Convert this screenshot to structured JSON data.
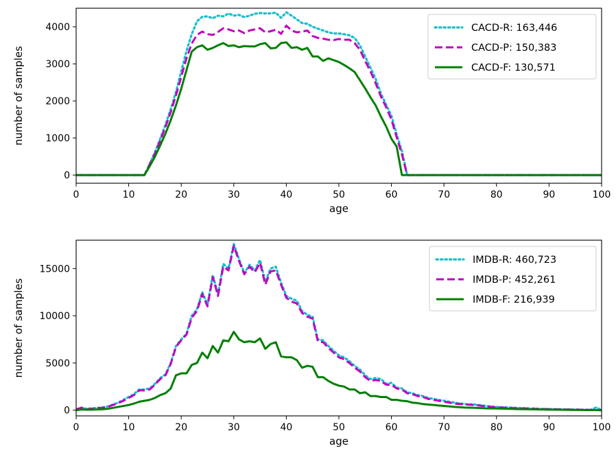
{
  "chart_data": [
    {
      "type": "line",
      "xlabel": "age",
      "ylabel": "number of samples",
      "xlim": [
        0,
        100
      ],
      "ylim": [
        -220,
        4500
      ],
      "xticks": [
        0,
        10,
        20,
        30,
        40,
        50,
        60,
        70,
        80,
        90,
        100
      ],
      "yticks": [
        0,
        1000,
        2000,
        3000,
        4000
      ],
      "grid": false,
      "legend_position": "top-right",
      "series": [
        {
          "name": "CACD-R: 163,446",
          "color": "#17becf",
          "style": "dotted",
          "x": [
            0,
            13,
            14,
            15,
            16,
            17,
            18,
            19,
            20,
            21,
            22,
            23,
            24,
            25,
            26,
            27,
            28,
            29,
            30,
            31,
            32,
            33,
            34,
            35,
            36,
            37,
            38,
            39,
            40,
            41,
            42,
            43,
            44,
            45,
            46,
            47,
            48,
            49,
            50,
            51,
            52,
            53,
            54,
            55,
            56,
            57,
            58,
            59,
            60,
            61,
            62,
            63,
            100
          ],
          "y": [
            0,
            0,
            300,
            620,
            980,
            1360,
            1780,
            2250,
            2800,
            3350,
            3800,
            4150,
            4270,
            4280,
            4230,
            4300,
            4280,
            4360,
            4300,
            4320,
            4260,
            4300,
            4350,
            4370,
            4360,
            4360,
            4380,
            4240,
            4390,
            4300,
            4200,
            4100,
            4080,
            4000,
            3950,
            3900,
            3850,
            3820,
            3820,
            3800,
            3770,
            3700,
            3500,
            3200,
            2900,
            2600,
            2200,
            1900,
            1600,
            1100,
            650,
            0,
            0
          ]
        },
        {
          "name": "CACD-P: 150,383",
          "color": "#bf00bf",
          "style": "dashed",
          "x": [
            0,
            13,
            14,
            15,
            16,
            17,
            18,
            19,
            20,
            21,
            22,
            23,
            24,
            25,
            26,
            27,
            28,
            29,
            30,
            31,
            32,
            33,
            34,
            35,
            36,
            37,
            38,
            39,
            40,
            41,
            42,
            43,
            44,
            45,
            46,
            47,
            48,
            49,
            50,
            51,
            52,
            53,
            54,
            55,
            56,
            57,
            58,
            59,
            60,
            61,
            62,
            63,
            100
          ],
          "y": [
            0,
            0,
            290,
            580,
            930,
            1300,
            1700,
            2150,
            2650,
            3150,
            3550,
            3780,
            3870,
            3800,
            3780,
            3860,
            3960,
            3930,
            3880,
            3900,
            3830,
            3900,
            3930,
            3960,
            3850,
            3880,
            3920,
            3810,
            4030,
            3900,
            3850,
            3870,
            3900,
            3750,
            3700,
            3680,
            3650,
            3640,
            3670,
            3650,
            3650,
            3560,
            3380,
            3080,
            2800,
            2480,
            2120,
            1830,
            1500,
            1020,
            560,
            0,
            0
          ]
        },
        {
          "name": "CACD-F: 130,571",
          "color": "#007f00",
          "style": "solid",
          "x": [
            0,
            13,
            14,
            15,
            16,
            17,
            18,
            19,
            20,
            21,
            22,
            23,
            24,
            25,
            26,
            27,
            28,
            29,
            30,
            31,
            32,
            33,
            34,
            35,
            36,
            37,
            38,
            39,
            40,
            41,
            42,
            43,
            44,
            45,
            46,
            47,
            48,
            49,
            50,
            51,
            52,
            53,
            54,
            55,
            56,
            57,
            58,
            59,
            60,
            61,
            62,
            63,
            100
          ],
          "y": [
            0,
            0,
            240,
            500,
            800,
            1120,
            1480,
            1880,
            2330,
            2830,
            3330,
            3450,
            3500,
            3380,
            3430,
            3500,
            3560,
            3480,
            3500,
            3450,
            3480,
            3470,
            3470,
            3530,
            3560,
            3420,
            3430,
            3560,
            3580,
            3430,
            3450,
            3380,
            3430,
            3200,
            3200,
            3080,
            3150,
            3100,
            3050,
            2970,
            2880,
            2780,
            2560,
            2340,
            2100,
            1880,
            1580,
            1310,
            980,
            770,
            0,
            0,
            0
          ]
        }
      ]
    },
    {
      "type": "line",
      "xlabel": "age",
      "ylabel": "number of samples",
      "xlim": [
        0,
        100
      ],
      "ylim": [
        -600,
        18000
      ],
      "xticks": [
        0,
        10,
        20,
        30,
        40,
        50,
        60,
        70,
        80,
        90,
        100
      ],
      "yticks": [
        0,
        5000,
        10000,
        15000
      ],
      "grid": false,
      "legend_position": "top-right",
      "series": [
        {
          "name": "IMDB-R: 460,723",
          "color": "#17becf",
          "style": "dotted",
          "x": [
            0,
            1,
            2,
            3,
            4,
            5,
            6,
            7,
            8,
            9,
            10,
            11,
            12,
            13,
            14,
            15,
            16,
            17,
            18,
            19,
            20,
            21,
            22,
            23,
            24,
            25,
            26,
            27,
            28,
            29,
            30,
            31,
            32,
            33,
            34,
            35,
            36,
            37,
            38,
            39,
            40,
            41,
            42,
            43,
            44,
            45,
            46,
            47,
            48,
            49,
            50,
            51,
            52,
            53,
            54,
            55,
            56,
            57,
            58,
            59,
            60,
            61,
            62,
            63,
            64,
            65,
            66,
            67,
            68,
            69,
            70,
            72,
            74,
            76,
            78,
            80,
            82,
            84,
            86,
            88,
            90,
            92,
            94,
            96,
            98,
            99,
            100
          ],
          "y": [
            100,
            280,
            150,
            200,
            250,
            300,
            400,
            600,
            800,
            1100,
            1400,
            1700,
            2200,
            2200,
            2300,
            2800,
            3400,
            3800,
            5000,
            6800,
            7500,
            8100,
            10000,
            10700,
            12500,
            11200,
            14300,
            12300,
            15500,
            15000,
            17600,
            16000,
            14500,
            15400,
            14800,
            15900,
            13600,
            15000,
            15200,
            13500,
            12100,
            11800,
            11600,
            10500,
            10100,
            9900,
            7500,
            7400,
            6800,
            6300,
            5800,
            5600,
            5200,
            4700,
            4300,
            3700,
            3300,
            3400,
            3300,
            2800,
            2900,
            2400,
            2300,
            1900,
            1800,
            1600,
            1500,
            1300,
            1200,
            1100,
            1000,
            800,
            650,
            600,
            450,
            350,
            300,
            250,
            200,
            150,
            120,
            100,
            80,
            60,
            50,
            300,
            0
          ]
        },
        {
          "name": "IMDB-P: 452,261",
          "color": "#bf00bf",
          "style": "dashed",
          "x": [
            0,
            1,
            2,
            3,
            4,
            5,
            6,
            7,
            8,
            9,
            10,
            11,
            12,
            13,
            14,
            15,
            16,
            17,
            18,
            19,
            20,
            21,
            22,
            23,
            24,
            25,
            26,
            27,
            28,
            29,
            30,
            31,
            32,
            33,
            34,
            35,
            36,
            37,
            38,
            39,
            40,
            41,
            42,
            43,
            44,
            45,
            46,
            47,
            48,
            49,
            50,
            51,
            52,
            53,
            54,
            55,
            56,
            57,
            58,
            59,
            60,
            61,
            62,
            63,
            64,
            65,
            66,
            67,
            68,
            69,
            70,
            72,
            74,
            76,
            78,
            80,
            82,
            84,
            86,
            88,
            90,
            92,
            94,
            96,
            98,
            100
          ],
          "y": [
            100,
            250,
            100,
            150,
            200,
            250,
            350,
            550,
            750,
            1000,
            1300,
            1600,
            2100,
            2100,
            2200,
            2700,
            3300,
            3700,
            4900,
            6700,
            7400,
            8000,
            9800,
            10500,
            12300,
            11000,
            14100,
            12100,
            15200,
            14800,
            17400,
            15800,
            14400,
            15200,
            14600,
            15600,
            13300,
            14700,
            14800,
            13300,
            11900,
            11500,
            11300,
            10300,
            9900,
            9700,
            7300,
            7200,
            6600,
            6100,
            5600,
            5400,
            5000,
            4500,
            4100,
            3500,
            3100,
            3200,
            3100,
            2700,
            2700,
            2300,
            2200,
            1800,
            1700,
            1500,
            1400,
            1200,
            1100,
            1000,
            900,
            700,
            600,
            550,
            400,
            300,
            250,
            200,
            180,
            140,
            110,
            90,
            70,
            50,
            40,
            0
          ]
        },
        {
          "name": "IMDB-F: 216,939",
          "color": "#007f00",
          "style": "solid",
          "x": [
            0,
            1,
            2,
            3,
            4,
            5,
            6,
            7,
            8,
            9,
            10,
            11,
            12,
            13,
            14,
            15,
            16,
            17,
            18,
            19,
            20,
            21,
            22,
            23,
            24,
            25,
            26,
            27,
            28,
            29,
            30,
            31,
            32,
            33,
            34,
            35,
            36,
            37,
            38,
            39,
            40,
            41,
            42,
            43,
            44,
            45,
            46,
            47,
            48,
            49,
            50,
            51,
            52,
            53,
            54,
            55,
            56,
            57,
            58,
            59,
            60,
            61,
            62,
            63,
            64,
            65,
            66,
            67,
            68,
            69,
            70,
            72,
            74,
            76,
            78,
            80,
            82,
            84,
            86,
            88,
            90,
            92,
            94,
            96,
            98,
            100
          ],
          "y": [
            0,
            80,
            50,
            60,
            80,
            100,
            150,
            250,
            350,
            450,
            550,
            700,
            900,
            1000,
            1100,
            1300,
            1600,
            1800,
            2300,
            3700,
            3900,
            3900,
            4800,
            5000,
            6100,
            5500,
            6800,
            6100,
            7400,
            7300,
            8300,
            7500,
            7200,
            7300,
            7200,
            7600,
            6500,
            7000,
            7200,
            5700,
            5600,
            5600,
            5300,
            4500,
            4700,
            4600,
            3500,
            3500,
            3100,
            2800,
            2600,
            2500,
            2200,
            2200,
            1800,
            1900,
            1500,
            1500,
            1400,
            1400,
            1100,
            1100,
            1000,
            950,
            800,
            750,
            650,
            600,
            550,
            500,
            450,
            350,
            280,
            250,
            200,
            180,
            150,
            120,
            100,
            80,
            60,
            50,
            40,
            30,
            20,
            0
          ]
        }
      ]
    }
  ]
}
